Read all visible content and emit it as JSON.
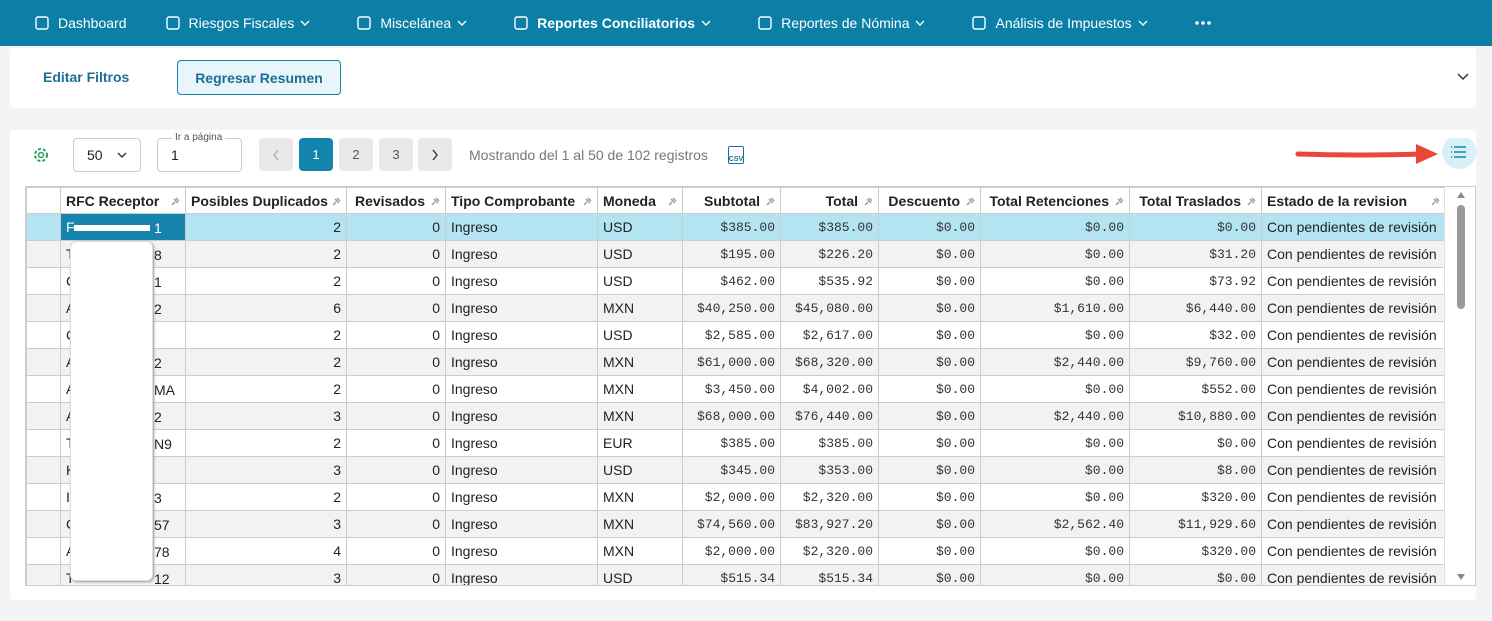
{
  "nav": {
    "items": [
      "Dashboard",
      "Riesgos Fiscales",
      "Miscelánea",
      "Reportes Conciliatorios",
      "Reportes de Nómina",
      "Análisis de Impuestos"
    ]
  },
  "filters": {
    "edit": "Editar Filtros",
    "back": "Regresar Resumen"
  },
  "toolbar": {
    "page_size": "50",
    "goto_label": "Ir a página",
    "goto_value": "1",
    "pages": [
      "1",
      "2",
      "3"
    ],
    "status": "Mostrando del 1 al 50 de 102 registros",
    "csv": "CSV"
  },
  "table": {
    "columns": [
      "RFC Receptor",
      "Posibles Duplicados",
      "Revisados",
      "Tipo Comprobante",
      "Moneda",
      "Subtotal",
      "Total",
      "Descuento",
      "Total Retenciones",
      "Total Traslados",
      "Estado de la revision"
    ],
    "rows": [
      [
        {
          "start": "F",
          "end": "1"
        },
        2,
        0,
        "Ingreso",
        "USD",
        "$385.00",
        "$385.00",
        "$0.00",
        "$0.00",
        "$0.00",
        "Con pendientes de revisión"
      ],
      [
        {
          "start": "T",
          "end": "8"
        },
        2,
        0,
        "Ingreso",
        "USD",
        "$195.00",
        "$226.20",
        "$0.00",
        "$0.00",
        "$31.20",
        "Con pendientes de revisión"
      ],
      [
        {
          "start": "C",
          "end": "1"
        },
        2,
        0,
        "Ingreso",
        "USD",
        "$462.00",
        "$535.92",
        "$0.00",
        "$0.00",
        "$73.92",
        "Con pendientes de revisión"
      ],
      [
        {
          "start": "A",
          "end": "2"
        },
        6,
        0,
        "Ingreso",
        "MXN",
        "$40,250.00",
        "$45,080.00",
        "$0.00",
        "$1,610.00",
        "$6,440.00",
        "Con pendientes de revisión"
      ],
      [
        {
          "start": "C",
          "end": ""
        },
        2,
        0,
        "Ingreso",
        "USD",
        "$2,585.00",
        "$2,617.00",
        "$0.00",
        "$0.00",
        "$32.00",
        "Con pendientes de revisión"
      ],
      [
        {
          "start": "A",
          "end": "2"
        },
        2,
        0,
        "Ingreso",
        "MXN",
        "$61,000.00",
        "$68,320.00",
        "$0.00",
        "$2,440.00",
        "$9,760.00",
        "Con pendientes de revisión"
      ],
      [
        {
          "start": "A",
          "end": "MA"
        },
        2,
        0,
        "Ingreso",
        "MXN",
        "$3,450.00",
        "$4,002.00",
        "$0.00",
        "$0.00",
        "$552.00",
        "Con pendientes de revisión"
      ],
      [
        {
          "start": "A",
          "end": "2"
        },
        3,
        0,
        "Ingreso",
        "MXN",
        "$68,000.00",
        "$76,440.00",
        "$0.00",
        "$2,440.00",
        "$10,880.00",
        "Con pendientes de revisión"
      ],
      [
        {
          "start": "T",
          "end": "N9"
        },
        2,
        0,
        "Ingreso",
        "EUR",
        "$385.00",
        "$385.00",
        "$0.00",
        "$0.00",
        "$0.00",
        "Con pendientes de revisión"
      ],
      [
        {
          "start": "K",
          "end": ""
        },
        3,
        0,
        "Ingreso",
        "USD",
        "$345.00",
        "$353.00",
        "$0.00",
        "$0.00",
        "$8.00",
        "Con pendientes de revisión"
      ],
      [
        {
          "start": "I",
          "end": "3"
        },
        2,
        0,
        "Ingreso",
        "MXN",
        "$2,000.00",
        "$2,320.00",
        "$0.00",
        "$0.00",
        "$320.00",
        "Con pendientes de revisión"
      ],
      [
        {
          "start": "C",
          "end": "57"
        },
        3,
        0,
        "Ingreso",
        "MXN",
        "$74,560.00",
        "$83,927.20",
        "$0.00",
        "$2,562.40",
        "$11,929.60",
        "Con pendientes de revisión"
      ],
      [
        {
          "start": "A",
          "end": "78"
        },
        4,
        0,
        "Ingreso",
        "MXN",
        "$2,000.00",
        "$2,320.00",
        "$0.00",
        "$0.00",
        "$320.00",
        "Con pendientes de revisión"
      ],
      [
        {
          "start": "T",
          "end": "12"
        },
        3,
        0,
        "Ingreso",
        "USD",
        "$515.34",
        "$515.34",
        "$0.00",
        "$0.00",
        "$0.00",
        "Con pendientes de revisión"
      ]
    ]
  }
}
